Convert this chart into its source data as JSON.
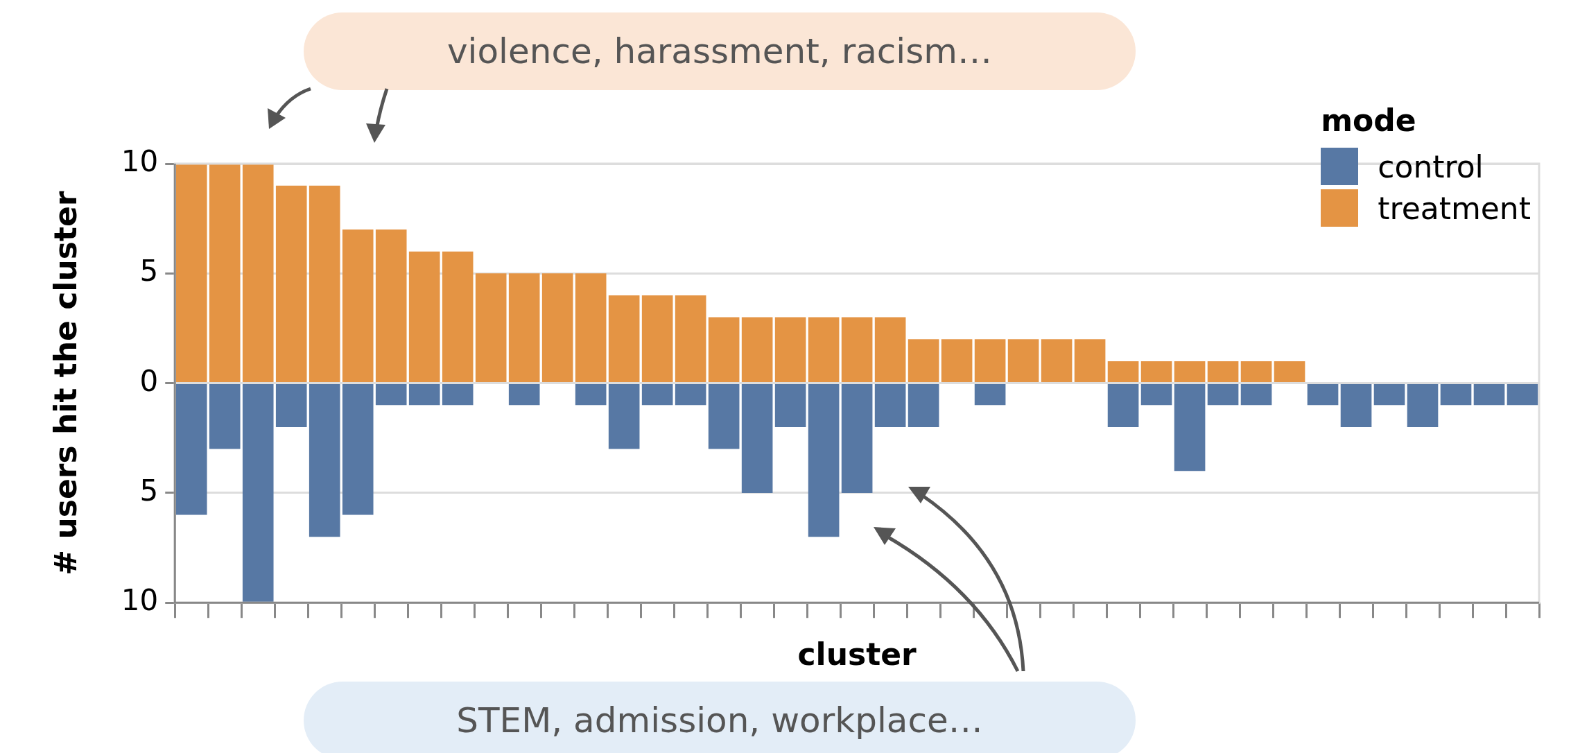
{
  "chart_data": {
    "type": "bar",
    "xlabel": "cluster",
    "ylabel": "# users hit the cluster",
    "legend_title": "mode",
    "legend": "top right",
    "stacked": true,
    "grid": "y",
    "tick_labels": "y",
    "categories": [
      null,
      null,
      null,
      null,
      null,
      null,
      null,
      null,
      null,
      null,
      null,
      null,
      null,
      null,
      null,
      null,
      null,
      null,
      null,
      null,
      null,
      null,
      null,
      null,
      null,
      null,
      null,
      null,
      null,
      null,
      null,
      null,
      null,
      null,
      null,
      null,
      null,
      null,
      null,
      null,
      null
    ],
    "ylim": [
      -10,
      10
    ],
    "yticks": [
      {
        "value": -10,
        "label": "10"
      },
      {
        "value": -5,
        "label": "5"
      },
      0,
      5,
      10
    ],
    "annotations": [
      "violence, harassment, racism…",
      "STEM, admission, workplace…"
    ],
    "series": [
      {
        "name": "control",
        "color": "#5778a4",
        "values": [
          -6,
          -3,
          -10,
          -2,
          -7,
          -6,
          -1,
          -1,
          -1,
          0,
          -1,
          0,
          -1,
          -3,
          -1,
          -1,
          -3,
          -5,
          -2,
          -7,
          -5,
          -2,
          -2,
          0,
          -1,
          0,
          0,
          0,
          -2,
          -1,
          -4,
          -1,
          -1,
          0,
          -1,
          -2,
          -1,
          -2,
          -1,
          -1,
          -1
        ]
      },
      {
        "name": "treatment",
        "color": "#e49444",
        "values": [
          10,
          10,
          10,
          9,
          9,
          7,
          7,
          6,
          6,
          5,
          5,
          5,
          5,
          4,
          4,
          4,
          3,
          3,
          3,
          3,
          3,
          3,
          2,
          2,
          2,
          2,
          2,
          2,
          1,
          1,
          1,
          1,
          1,
          1,
          0,
          0,
          0,
          0,
          0,
          0,
          0
        ]
      }
    ]
  }
}
